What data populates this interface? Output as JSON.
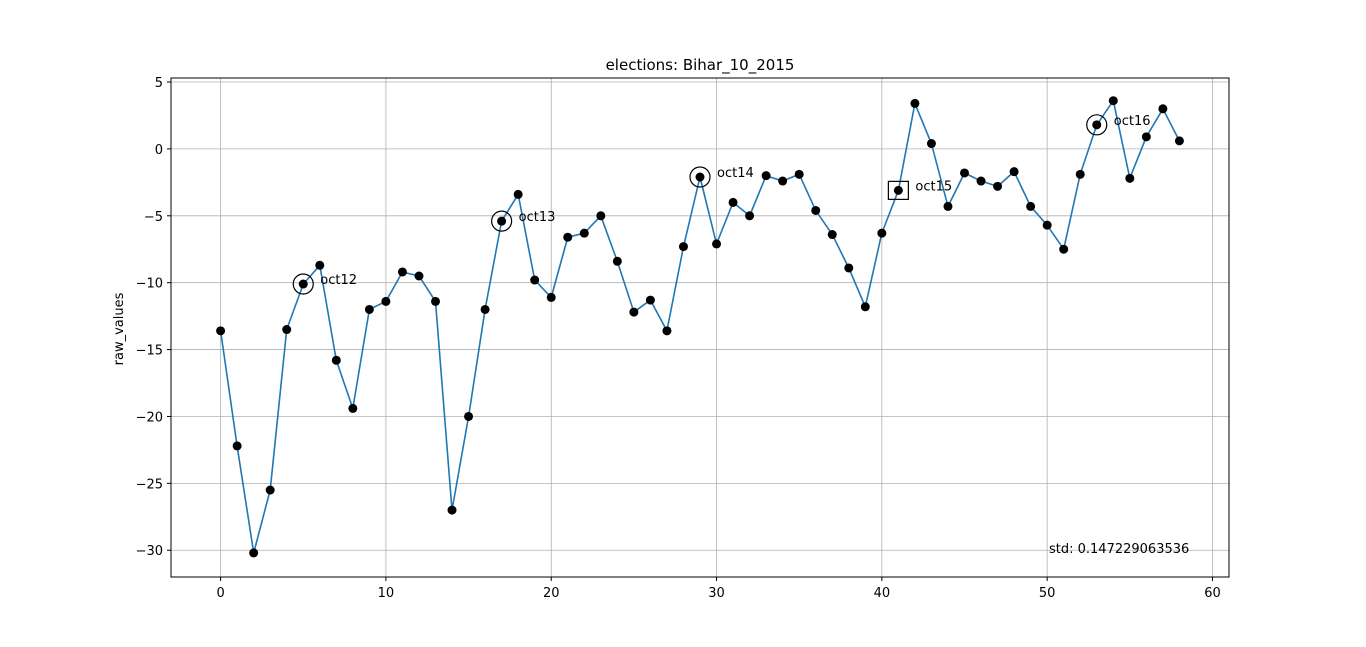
{
  "chart_data": {
    "type": "line",
    "title": "elections: Bihar_10_2015",
    "xlabel": "",
    "ylabel": "raw_values",
    "xlim": [
      -3,
      61
    ],
    "ylim": [
      -32,
      5.3
    ],
    "xticks": [
      0,
      10,
      20,
      30,
      40,
      50,
      60
    ],
    "yticks": [
      5,
      0,
      -5,
      -10,
      -15,
      -20,
      -25,
      -30
    ],
    "grid": true,
    "line_color": "#1f77b4",
    "marker_color": "#000000",
    "series": [
      {
        "x": [
          0,
          1,
          2,
          3,
          4,
          5,
          6,
          7,
          8,
          9,
          10,
          11,
          12,
          13,
          14,
          15,
          16,
          17,
          18,
          19,
          20,
          21,
          22,
          23,
          24,
          25,
          26,
          27,
          28,
          29,
          30,
          31,
          32,
          33,
          34,
          35,
          36,
          37,
          38,
          39,
          40,
          41,
          42,
          43,
          44,
          45,
          46,
          47,
          48,
          49,
          50,
          51,
          52,
          53,
          54,
          55,
          56,
          57,
          58
        ],
        "values": [
          -13.6,
          -22.2,
          -30.2,
          -25.5,
          -13.5,
          -10.1,
          -8.7,
          -15.8,
          -19.4,
          -12.0,
          -11.4,
          -9.2,
          -9.5,
          -11.4,
          -27.0,
          -20.0,
          -12.0,
          -5.4,
          -3.4,
          -9.8,
          -11.1,
          -6.6,
          -6.3,
          -5.0,
          -8.4,
          -12.2,
          -11.3,
          -13.6,
          -7.3,
          -2.1,
          -7.1,
          -4.0,
          -5.0,
          -2.0,
          -2.4,
          -1.9,
          -4.6,
          -6.4,
          -8.9,
          -11.8,
          -6.3,
          -3.1,
          3.4,
          0.4,
          -4.3,
          -1.8,
          -2.4,
          -2.8,
          -1.7,
          -4.3,
          -5.7,
          -7.5,
          -1.9,
          1.8,
          3.6,
          -2.2,
          0.9,
          3.0,
          0.6
        ]
      }
    ],
    "annotations": [
      {
        "label": "oct12",
        "x": 5,
        "y": -10.1,
        "marker": "circle"
      },
      {
        "label": "oct13",
        "x": 17,
        "y": -5.4,
        "marker": "circle"
      },
      {
        "label": "oct14",
        "x": 29,
        "y": -2.1,
        "marker": "circle"
      },
      {
        "label": "oct15",
        "x": 41,
        "y": -3.1,
        "marker": "square"
      },
      {
        "label": "oct16",
        "x": 53,
        "y": 1.8,
        "marker": "circle"
      }
    ],
    "std_text": "std: 0.147229063536"
  }
}
